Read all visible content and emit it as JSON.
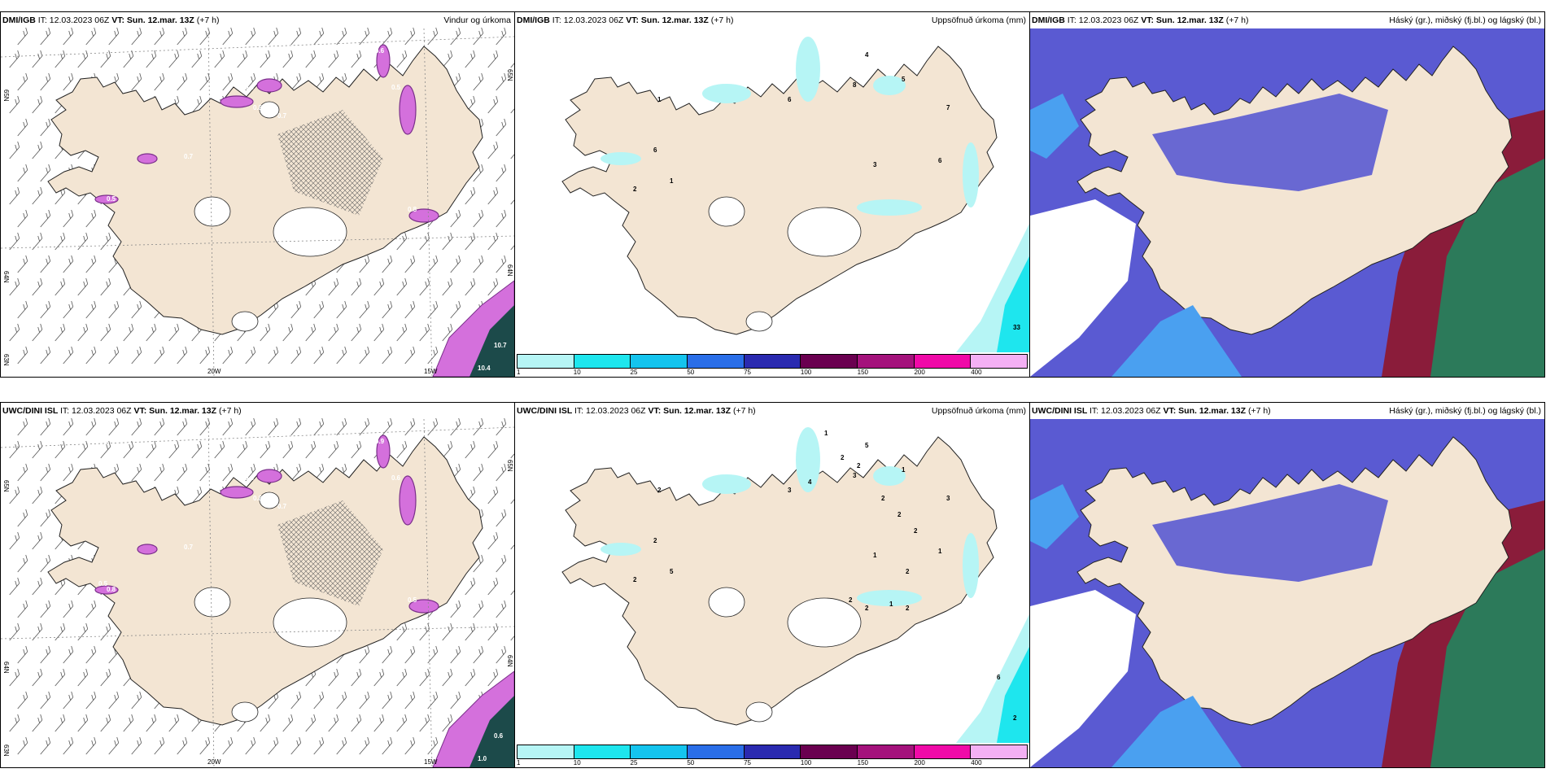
{
  "colors": {
    "land": "#f3e5d3",
    "precip_light": "#b6f5f5",
    "precip_cyan": "#1ee6ee",
    "wind_purple": "#d470dc",
    "wind_dark": "#7a2f8a",
    "cloud_high": "#5a5ad2",
    "cloud_mid": "#8a1c3a",
    "cloud_low": "#2c7a5a",
    "cloud_light": "#4aa0f0"
  },
  "panels": [
    {
      "model": "DMI/IGB",
      "it_label": "IT:",
      "it": "12.03.2023 06Z",
      "vt_label": "VT:",
      "vt": "Sun. 12.mar. 13Z",
      "lead": "(+7 h)",
      "title": "Vindur og úrkoma",
      "type": "wind",
      "lat_labels": [
        "65N",
        "64N",
        "63N"
      ],
      "lat_labels_r": [
        "65N",
        "64N"
      ],
      "lon_labels": [
        "20W",
        "15W"
      ],
      "values": [
        "10.7",
        "10.4",
        "0.7",
        "0.8",
        "0.5",
        "0.8",
        "0.9",
        "0.6",
        "0.7",
        "0.5"
      ]
    },
    {
      "model": "DMI/IGB",
      "it_label": "IT:",
      "it": "12.03.2023 06Z",
      "vt_label": "VT:",
      "vt": "Sun. 12.mar. 13Z",
      "lead": "(+7 h)",
      "title": "Uppsöfnuð úrkoma (mm)",
      "type": "precip",
      "values": [
        "4",
        "5",
        "8",
        "6",
        "1",
        "6",
        "7",
        "6",
        "3",
        "2",
        "1",
        "33"
      ]
    },
    {
      "model": "DMI/IGB",
      "it_label": "IT:",
      "it": "12.03.2023 06Z",
      "vt_label": "VT:",
      "vt": "Sun. 12.mar. 13Z",
      "lead": "(+7 h)",
      "title": "Háský (gr.), miðský (fj.bl.) og lágský (bl.)",
      "type": "cloud"
    },
    {
      "model": "UWC/DINI ISL",
      "it_label": "IT:",
      "it": "12.03.2023 06Z",
      "vt_label": "VT:",
      "vt": "Sun. 12.mar. 13Z",
      "lead": "(+7 h)",
      "title": "",
      "type": "wind",
      "lat_labels": [
        "65N",
        "64N",
        "63N"
      ],
      "lat_labels_r": [
        "65N",
        "64N"
      ],
      "lon_labels": [
        "20W",
        "15W"
      ],
      "values": [
        "0.6",
        "1.0",
        "0.7",
        "0.8",
        "0.6",
        "0.5",
        "0.6",
        "0.9",
        "0.7",
        "0.8",
        "0.5"
      ]
    },
    {
      "model": "UWC/DINI ISL",
      "it_label": "IT:",
      "it": "12.03.2023 06Z",
      "vt_label": "VT:",
      "vt": "Sun. 12.mar. 13Z",
      "lead": "(+7 h)",
      "title": "Uppsöfnuð úrkoma (mm)",
      "type": "precip",
      "values": [
        "5",
        "1",
        "3",
        "3",
        "2",
        "2",
        "3",
        "1",
        "1",
        "2",
        "5",
        "2",
        "4",
        "1",
        "2",
        "2",
        "2",
        "2",
        "2",
        "2",
        "2",
        "6",
        "2",
        "1",
        "2"
      ]
    },
    {
      "model": "UWC/DINI ISL",
      "it_label": "IT:",
      "it": "12.03.2023 06Z",
      "vt_label": "VT:",
      "vt": "Sun. 12.mar. 13Z",
      "lead": "(+7 h)",
      "title": "Háský (gr.), miðský (fj.bl.) og lágský (bl.)",
      "type": "cloud"
    }
  ],
  "colorbar": {
    "ticks": [
      "1",
      "10",
      "25",
      "50",
      "75",
      "100",
      "150",
      "200",
      "400"
    ],
    "colors": [
      "#b6f5f5",
      "#1ee6ee",
      "#14c4ee",
      "#2a6ee8",
      "#2a2ab0",
      "#6a0050",
      "#a4127c",
      "#f00aa8",
      "#f4b0f4"
    ]
  }
}
